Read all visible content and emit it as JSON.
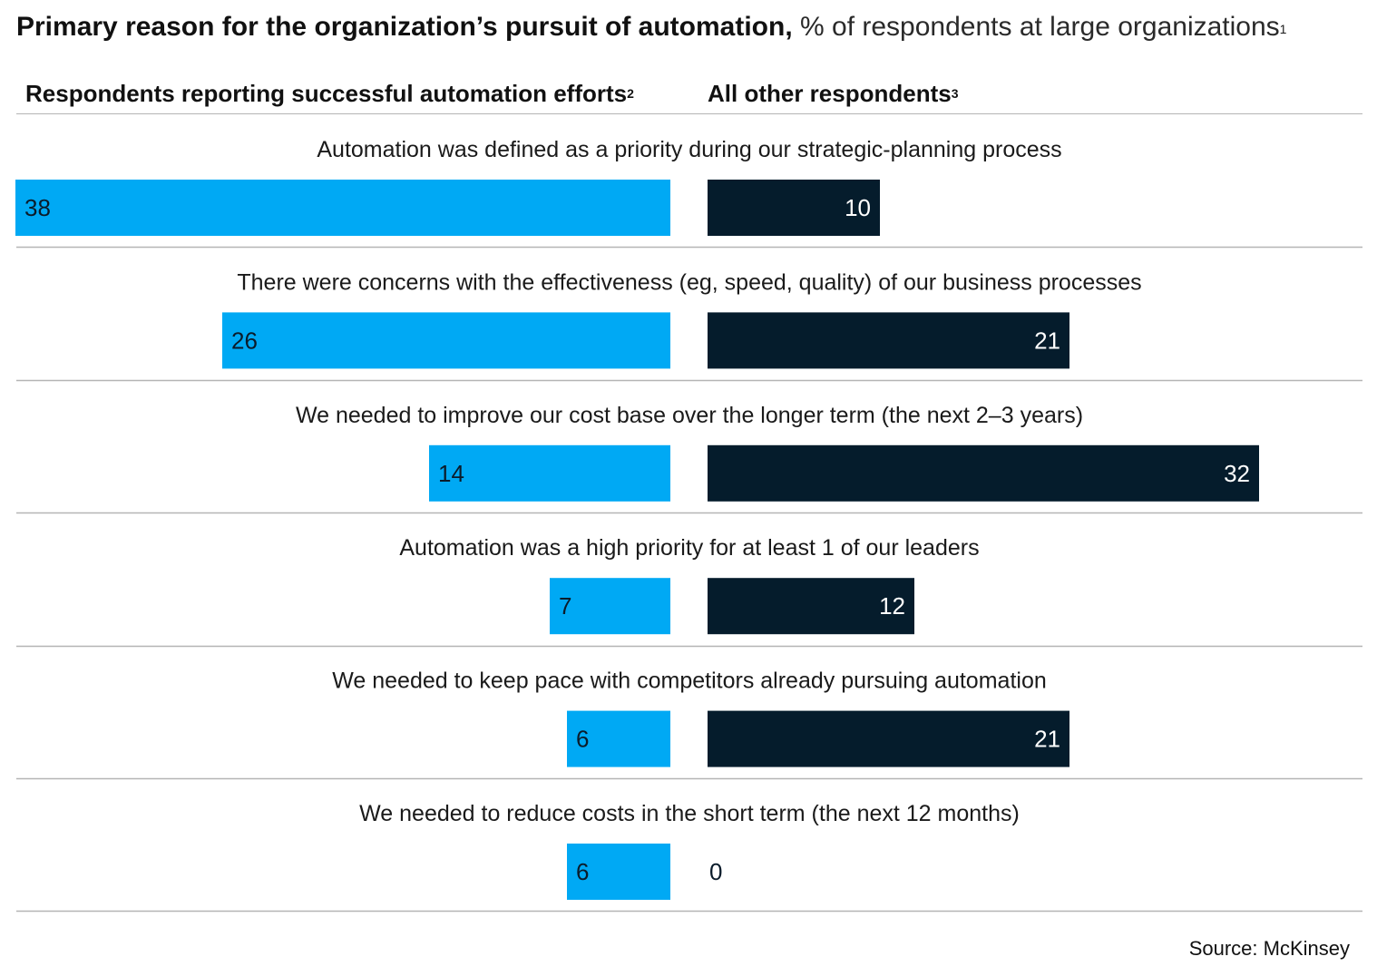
{
  "title": {
    "bold": "Primary reason for the organization’s pursuit of automation,",
    "regular": " % of respondents at large organizations",
    "footnote": "1"
  },
  "legend": {
    "left_label": "Respondents reporting successful automation efforts",
    "left_footnote": "2",
    "right_label": "All other respondents",
    "right_footnote": "3"
  },
  "colors": {
    "successful": "#00a9f4",
    "others": "#051c2c",
    "divider": "#b5b5b5"
  },
  "source": "Source: McKinsey",
  "chart_data": {
    "type": "bar",
    "orientation": "horizontal-butterfly",
    "categories": [
      "Automation was defined as a priority during our strategic-planning process",
      "There were concerns with the effectiveness (eg, speed, quality) of our business processes",
      "We needed to improve our cost base over the longer term (the next 2–3 years)",
      "Automation was a high priority for at least 1 of our leaders",
      "We needed to keep pace with competitors already pursuing automation",
      "We needed to reduce costs in the short term (the next 12 months)"
    ],
    "series": [
      {
        "name": "Respondents reporting successful automation efforts",
        "values": [
          38,
          26,
          14,
          7,
          6,
          6
        ],
        "color": "#00a9f4"
      },
      {
        "name": "All other respondents",
        "values": [
          10,
          21,
          32,
          12,
          21,
          0
        ],
        "color": "#051c2c"
      }
    ]
  }
}
